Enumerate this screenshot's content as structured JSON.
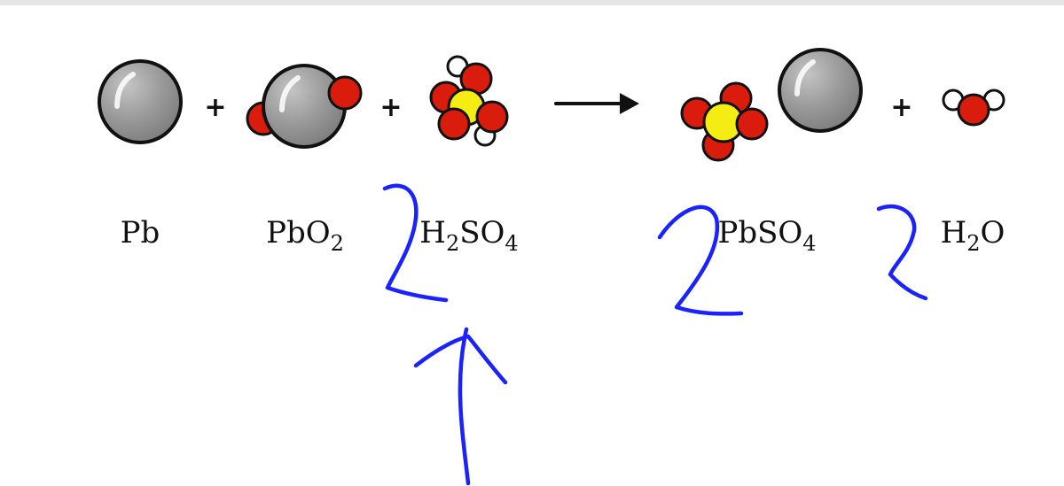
{
  "colors": {
    "lead_atom": "#8f8f8f",
    "oxygen_atom": "#d91c0c",
    "sulfur_atom": "#f5ec14",
    "hydrogen_atom": "#ffffff",
    "outline": "#111111",
    "annotation_ink": "#1a22ff"
  },
  "equation": {
    "plus_symbol": "+",
    "arrow": "reaction-arrow",
    "species": [
      {
        "id": "pb",
        "main": "Pb",
        "parts": [
          {
            "t": "Pb",
            "sub": ""
          }
        ]
      },
      {
        "id": "pbo2",
        "main": "PbO2",
        "parts": [
          {
            "t": "PbO",
            "sub": "2"
          }
        ]
      },
      {
        "id": "h2so4",
        "main": "H2SO4",
        "parts": [
          {
            "t": "H",
            "sub": "2"
          },
          {
            "t": "SO",
            "sub": "4"
          }
        ]
      },
      {
        "id": "pbso4",
        "main": "PbSO4",
        "parts": [
          {
            "t": "PbSO",
            "sub": "4"
          }
        ]
      },
      {
        "id": "h2o",
        "main": "H2O",
        "parts": [
          {
            "t": "H",
            "sub": "2"
          },
          {
            "t": "O",
            "sub": ""
          }
        ]
      }
    ]
  },
  "annotations": {
    "coefficients": [
      "2",
      "2",
      "2"
    ],
    "pointer": "up-arrow-annotation"
  }
}
